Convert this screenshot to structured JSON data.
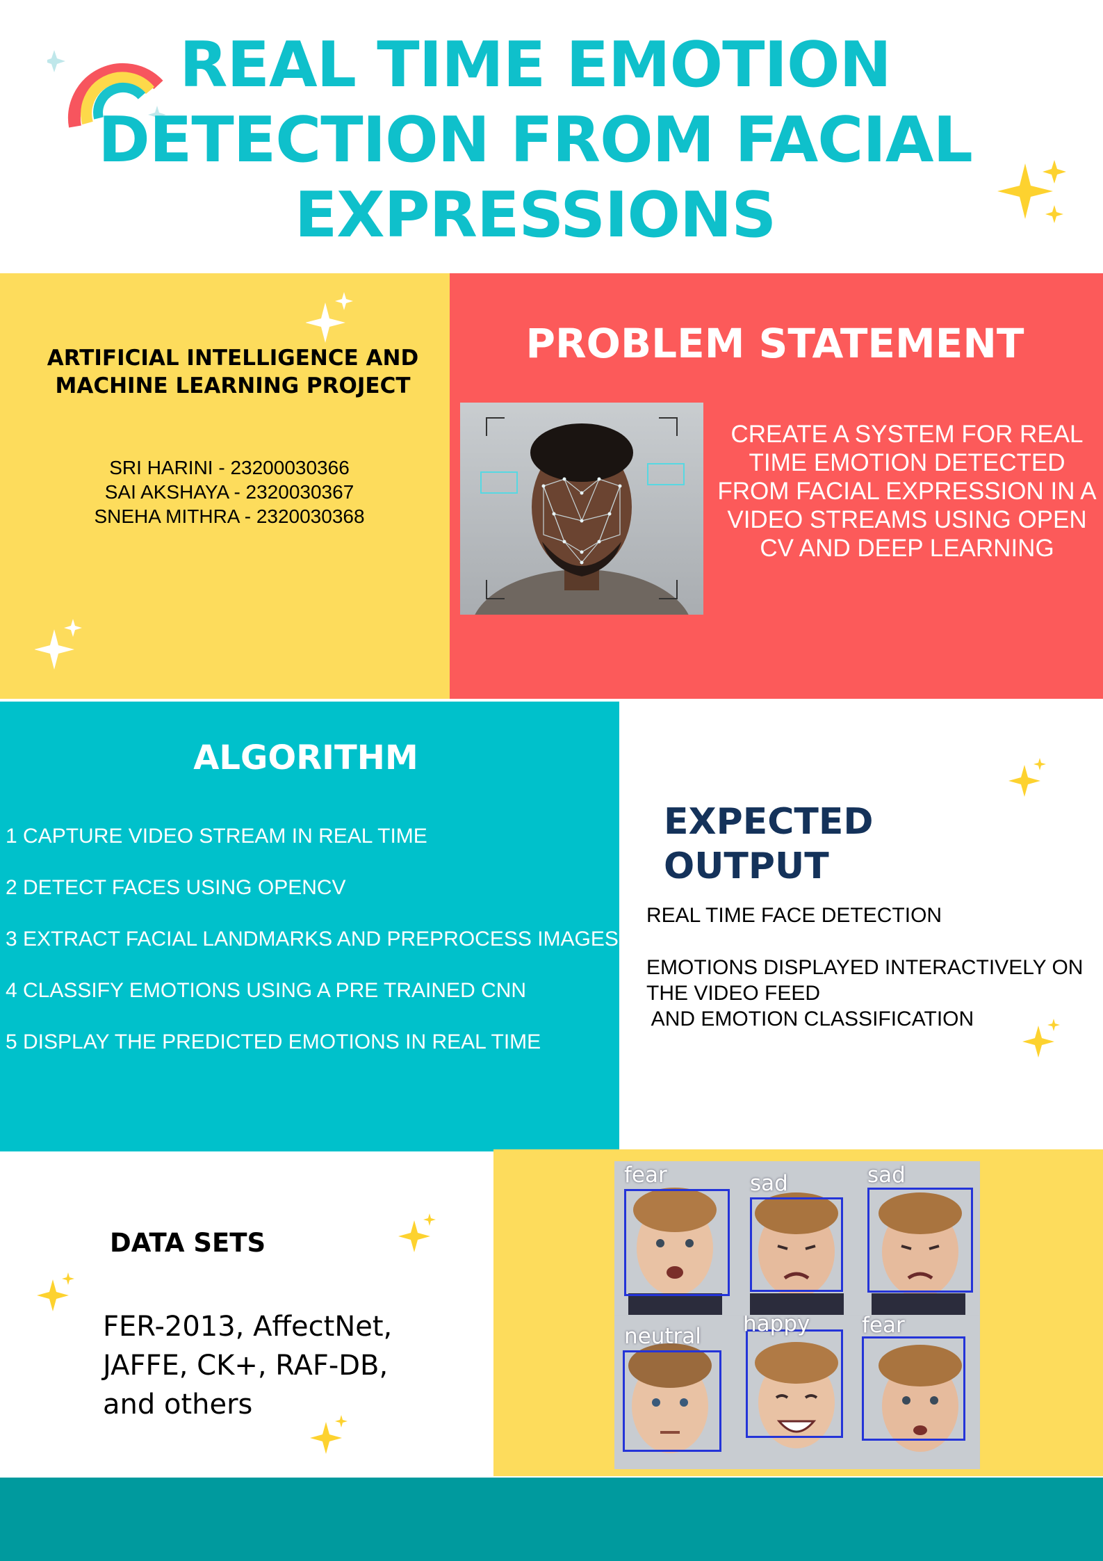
{
  "title": {
    "lines": [
      "REAL TIME EMOTION",
      "DETECTION FROM FACIAL",
      "EXPRESSIONS"
    ]
  },
  "project": {
    "heading_lines": [
      "ARTIFICIAL INTELLIGENCE AND",
      "MACHINE LEARNING PROJECT"
    ],
    "members": [
      "SRI HARINI - 23200030366",
      "SAI AKSHAYA  - 2320030367",
      "SNEHA MITHRA - 2320030368"
    ]
  },
  "problem": {
    "heading": "PROBLEM STATEMENT",
    "text": "CREATE A SYSTEM FOR REAL TIME EMOTION DETECTED FROM FACIAL EXPRESSION IN A VIDEO STREAMS USING OPEN CV AND DEEP LEARNING"
  },
  "algorithm": {
    "heading": "ALGORITHM",
    "steps": [
      "1 CAPTURE VIDEO STREAM IN REAL TIME",
      "2 DETECT FACES USING OPENCV",
      "3 EXTRACT FACIAL LANDMARKS AND PREPROCESS IMAGES",
      "4 CLASSIFY EMOTIONS USING A PRE TRAINED CNN",
      "5 DISPLAY THE PREDICTED EMOTIONS IN REAL TIME"
    ]
  },
  "expected_output": {
    "heading_lines": [
      "EXPECTED",
      "OUTPUT"
    ],
    "line1": "REAL TIME FACE DETECTION",
    "line2_parts": [
      "EMOTIONS DISPLAYED INTERACTIVELY ON",
      "THE VIDEO FEED",
      " AND EMOTION CLASSIFICATION"
    ]
  },
  "datasets": {
    "heading": "DATA SETS",
    "lines": [
      "FER-2013, AffectNet,",
      "JAFFE, CK+, RAF-DB,",
      "and others"
    ]
  },
  "emotion_labels": [
    "fear",
    "sad",
    "sad",
    "neutral",
    "happy",
    "fear"
  ],
  "colors": {
    "title_teal": "#0fc0cb",
    "yellow": "#fddc5c",
    "red": "#fc5a5a",
    "teal_block": "#00c1cb",
    "footer": "#009a9e",
    "navy": "#14325a",
    "bbox_blue": "#2434d8"
  },
  "icons": [
    "rainbow-icon",
    "sparkle-icon"
  ]
}
